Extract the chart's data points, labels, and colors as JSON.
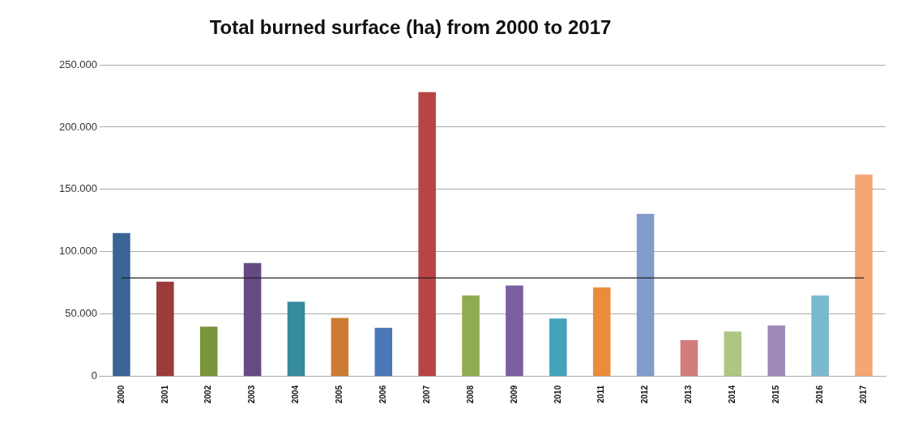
{
  "chart_data": {
    "type": "bar",
    "title": "Total burned surface (ha) from 2000 to 2017",
    "categories": [
      "2000",
      "2001",
      "2002",
      "2003",
      "2004",
      "2005",
      "2006",
      "2007",
      "2008",
      "2009",
      "2010",
      "2011",
      "2012",
      "2013",
      "2014",
      "2015",
      "2016",
      "2017"
    ],
    "values": [
      115000,
      76000,
      40000,
      91000,
      60000,
      47000,
      39000,
      228000,
      65000,
      73000,
      46500,
      71500,
      130500,
      29000,
      36000,
      41000,
      65000,
      162000
    ],
    "colors": [
      "#3b6496",
      "#9c3b3a",
      "#7a963c",
      "#654a85",
      "#358a9c",
      "#cc7b33",
      "#4a78b8",
      "#b84544",
      "#8fac50",
      "#7a5ea0",
      "#44a2bb",
      "#ea8c3c",
      "#7f9ccb",
      "#d27c7c",
      "#adc783",
      "#9e8abb",
      "#7ab9d0",
      "#f4a674"
    ],
    "ylim": [
      0,
      250000
    ],
    "yticks": [
      {
        "value": 0,
        "label": "0"
      },
      {
        "value": 50000,
        "label": "50.000"
      },
      {
        "value": 100000,
        "label": "100.000"
      },
      {
        "value": 150000,
        "label": "150.000"
      },
      {
        "value": 200000,
        "label": "200.000"
      },
      {
        "value": 250000,
        "label": "250.000"
      }
    ],
    "grid": "y",
    "legend": false,
    "ref_lines": [
      {
        "axis": "y",
        "value": 79000,
        "color": "#222222"
      }
    ]
  }
}
